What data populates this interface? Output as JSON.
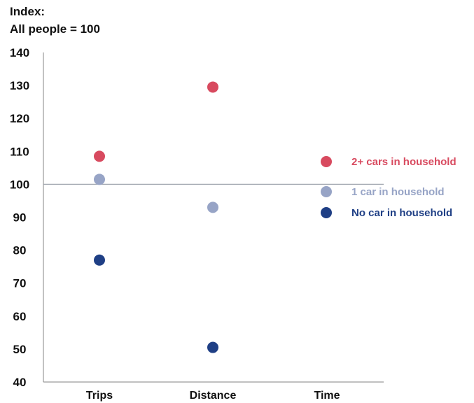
{
  "chart_data": {
    "type": "scatter",
    "title_lines": [
      "Index:",
      "All people = 100"
    ],
    "categories": [
      "Trips",
      "Distance",
      "Time"
    ],
    "ylim": [
      40,
      140
    ],
    "yticks": [
      "140",
      "130",
      "120",
      "110",
      "100",
      "90",
      "80",
      "70",
      "60",
      "50",
      "40"
    ],
    "reference_line": 100,
    "grid": false,
    "legend_position": "right",
    "series": [
      {
        "name": "2+ cars in household",
        "color": "#d84a5f",
        "values": [
          108.5,
          129.5,
          null
        ]
      },
      {
        "name": "1 car in household",
        "color": "#97a4c6",
        "values": [
          101.5,
          93,
          null
        ]
      },
      {
        "name": "No car in household",
        "color": "#1f3f85",
        "values": [
          77,
          50.5,
          null
        ]
      }
    ]
  }
}
